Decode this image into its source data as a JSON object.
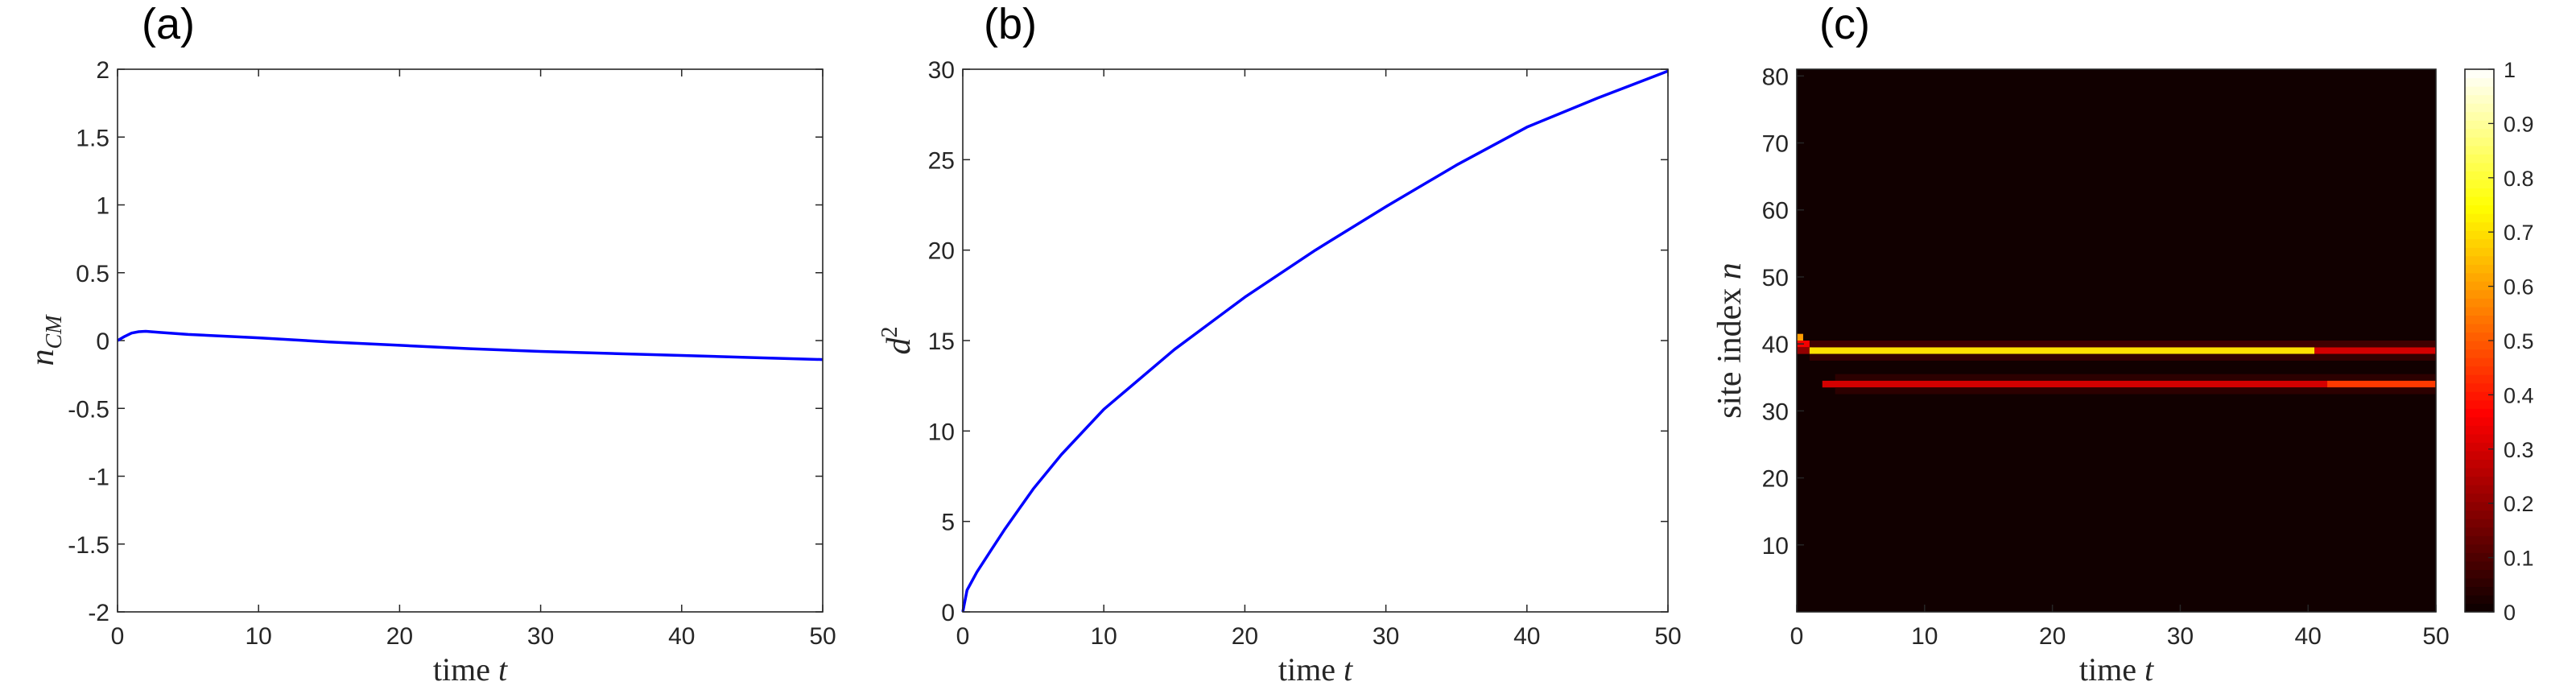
{
  "chart_data": [
    {
      "type": "line",
      "panel_label": "(a)",
      "xlabel": "time",
      "xlabel_var": "t",
      "ylabel": "n",
      "ylabel_sub": "CM",
      "xlim": [
        0,
        50
      ],
      "ylim": [
        -2,
        2
      ],
      "xticks": [
        0,
        10,
        20,
        30,
        40,
        50
      ],
      "yticks": [
        -2,
        -1.5,
        -1,
        -0.5,
        0,
        0.5,
        1,
        1.5,
        2
      ],
      "series": [
        {
          "color": "#0000ff",
          "x": [
            0,
            0.5,
            1,
            1.5,
            2,
            3,
            5,
            10,
            15,
            20,
            25,
            30,
            35,
            40,
            45,
            50
          ],
          "y": [
            0,
            0.03,
            0.055,
            0.065,
            0.068,
            0.06,
            0.045,
            0.02,
            -0.01,
            -0.035,
            -0.06,
            -0.08,
            -0.095,
            -0.11,
            -0.125,
            -0.14
          ]
        }
      ]
    },
    {
      "type": "line",
      "panel_label": "(b)",
      "xlabel": "time",
      "xlabel_var": "t",
      "ylabel": "d",
      "ylabel_sup": "2",
      "xlim": [
        0,
        50
      ],
      "ylim": [
        0,
        30
      ],
      "xticks": [
        0,
        10,
        20,
        30,
        40,
        50
      ],
      "yticks": [
        0,
        5,
        10,
        15,
        20,
        25,
        30
      ],
      "series": [
        {
          "color": "#0000ff",
          "x": [
            0,
            0.3,
            1,
            2,
            3,
            5,
            7,
            10,
            15,
            20,
            25,
            30,
            35,
            40,
            45,
            50
          ],
          "y": [
            0,
            1.2,
            2.2,
            3.4,
            4.6,
            6.8,
            8.7,
            11.2,
            14.5,
            17.4,
            20.0,
            22.4,
            24.7,
            26.8,
            28.4,
            29.9
          ]
        }
      ]
    },
    {
      "type": "heatmap",
      "panel_label": "(c)",
      "xlabel": "time",
      "xlabel_var": "t",
      "ylabel": "site index",
      "ylabel_var": "n",
      "xlim": [
        0,
        50
      ],
      "ylim": [
        0,
        81
      ],
      "xticks": [
        0,
        10,
        20,
        30,
        40,
        50
      ],
      "yticks": [
        10,
        20,
        30,
        40,
        50,
        60,
        70,
        80
      ],
      "colorbar": {
        "colormap": "hot",
        "clim": [
          0,
          1
        ],
        "ticks": [
          0,
          0.1,
          0.2,
          0.3,
          0.4,
          0.5,
          0.6,
          0.7,
          0.8,
          0.9,
          1
        ]
      },
      "background_value": 0.01,
      "bands": [
        {
          "row": 41,
          "t_start": 0,
          "t_end": 0.5,
          "value": 0.6
        },
        {
          "row": 40,
          "t_start": 0,
          "t_end": 1.2,
          "value": 0.35
        },
        {
          "row": 39,
          "t_start": 0,
          "t_end": 1,
          "value": 0.2
        },
        {
          "row": 39,
          "t_start": 1,
          "t_end": 40.5,
          "value": 0.7
        },
        {
          "row": 39,
          "t_start": 40.5,
          "t_end": 50,
          "value": 0.3
        },
        {
          "row": 40,
          "t_start": 1,
          "t_end": 50,
          "value": 0.08
        },
        {
          "row": 38,
          "t_start": 1,
          "t_end": 50,
          "value": 0.06
        },
        {
          "row": 35,
          "t_start": 3,
          "t_end": 50,
          "value": 0.05
        },
        {
          "row": 34,
          "t_start": 2,
          "t_end": 41.5,
          "value": 0.3
        },
        {
          "row": 34,
          "t_start": 41.5,
          "t_end": 50,
          "value": 0.45
        },
        {
          "row": 33,
          "t_start": 3,
          "t_end": 50,
          "value": 0.05
        }
      ]
    }
  ]
}
